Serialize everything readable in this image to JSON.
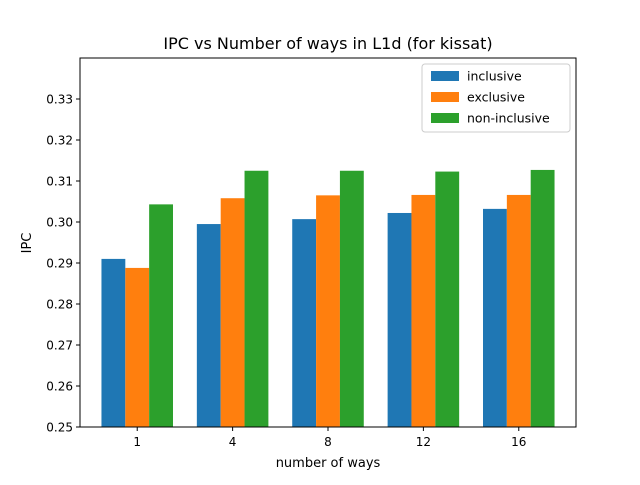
{
  "chart_data": {
    "type": "bar",
    "title": "IPC vs Number of ways in L1d (for kissat)",
    "xlabel": "number of ways",
    "ylabel": "IPC",
    "categories": [
      "1",
      "4",
      "8",
      "12",
      "16"
    ],
    "ylim": [
      0.25,
      0.34
    ],
    "yticks": [
      "0.25",
      "0.26",
      "0.27",
      "0.28",
      "0.29",
      "0.30",
      "0.31",
      "0.32",
      "0.33"
    ],
    "grid": false,
    "legend_position": "top-right",
    "series": [
      {
        "name": "inclusive",
        "color": "#1f77b4",
        "values": [
          0.291,
          0.2995,
          0.3007,
          0.3022,
          0.3032
        ]
      },
      {
        "name": "exclusive",
        "color": "#ff7f0e",
        "values": [
          0.2888,
          0.3058,
          0.3065,
          0.3066,
          0.3066
        ]
      },
      {
        "name": "non-inclusive",
        "color": "#2ca02c",
        "values": [
          0.3043,
          0.3125,
          0.3125,
          0.3123,
          0.3127
        ]
      }
    ]
  }
}
